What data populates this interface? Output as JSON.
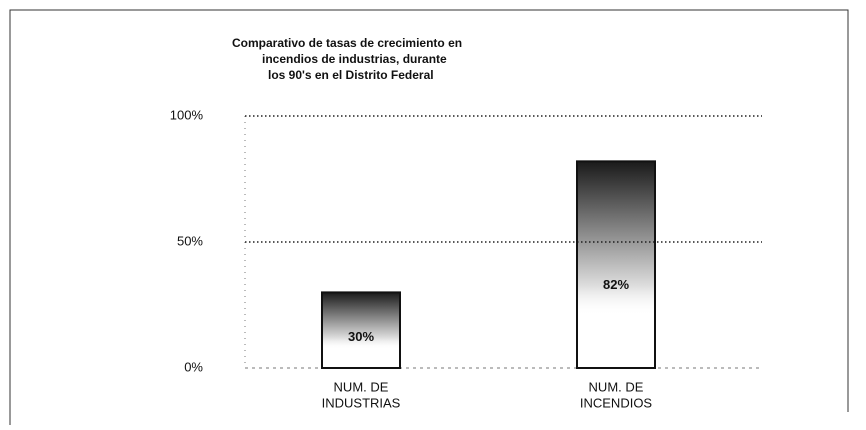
{
  "chart_data": {
    "type": "bar",
    "title": [
      "Comparativo de tasas de crecimiento en",
      "incendios de industrias, durante",
      "los 90's en el Distrito Federal"
    ],
    "categories": [
      [
        "NUM. DE",
        "INDUSTRIAS"
      ],
      [
        "NUM. DE",
        "INCENDIOS"
      ]
    ],
    "values": [
      30,
      82
    ],
    "value_labels": [
      "30%",
      "82%"
    ],
    "color": "#1a1a1a",
    "ylim": [
      0,
      100
    ],
    "yticks": [
      {
        "value": 0,
        "label": "0%"
      },
      {
        "value": 50,
        "label": "50%"
      },
      {
        "value": 100,
        "label": "100%"
      }
    ],
    "grid": true
  }
}
